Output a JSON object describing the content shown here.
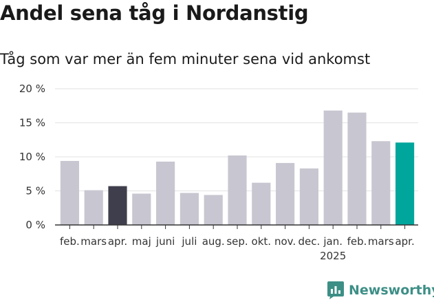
{
  "brand": {
    "name": "Newsworthy"
  },
  "chart_data": {
    "type": "bar",
    "title": "Andel sena tåg i Nordanstig",
    "subtitle": "Tåg som var mer än fem minuter sena vid ankomst",
    "xlabel": "",
    "ylabel": "",
    "ylim": [
      0,
      20
    ],
    "yticks": [
      "0 %",
      "5 %",
      "10 %",
      "15 %",
      "20 %"
    ],
    "grid": true,
    "categories": [
      "feb.",
      "mars",
      "apr.",
      "maj",
      "juni",
      "juli",
      "aug.",
      "sep.",
      "okt.",
      "nov.",
      "dec.",
      "jan.",
      "feb.",
      "mars",
      "apr."
    ],
    "year_label": "2025",
    "values": [
      9.4,
      5.1,
      5.7,
      4.6,
      9.3,
      4.7,
      4.4,
      10.2,
      6.2,
      9.1,
      8.3,
      16.8,
      16.5,
      12.3,
      12.1
    ],
    "colors": {
      "default": "#c8c6d0",
      "highlight_prev_year": "#3f3e4c",
      "highlight_current": "#00a69c"
    },
    "highlight_prev_index": 2,
    "highlight_current_index": 14
  }
}
